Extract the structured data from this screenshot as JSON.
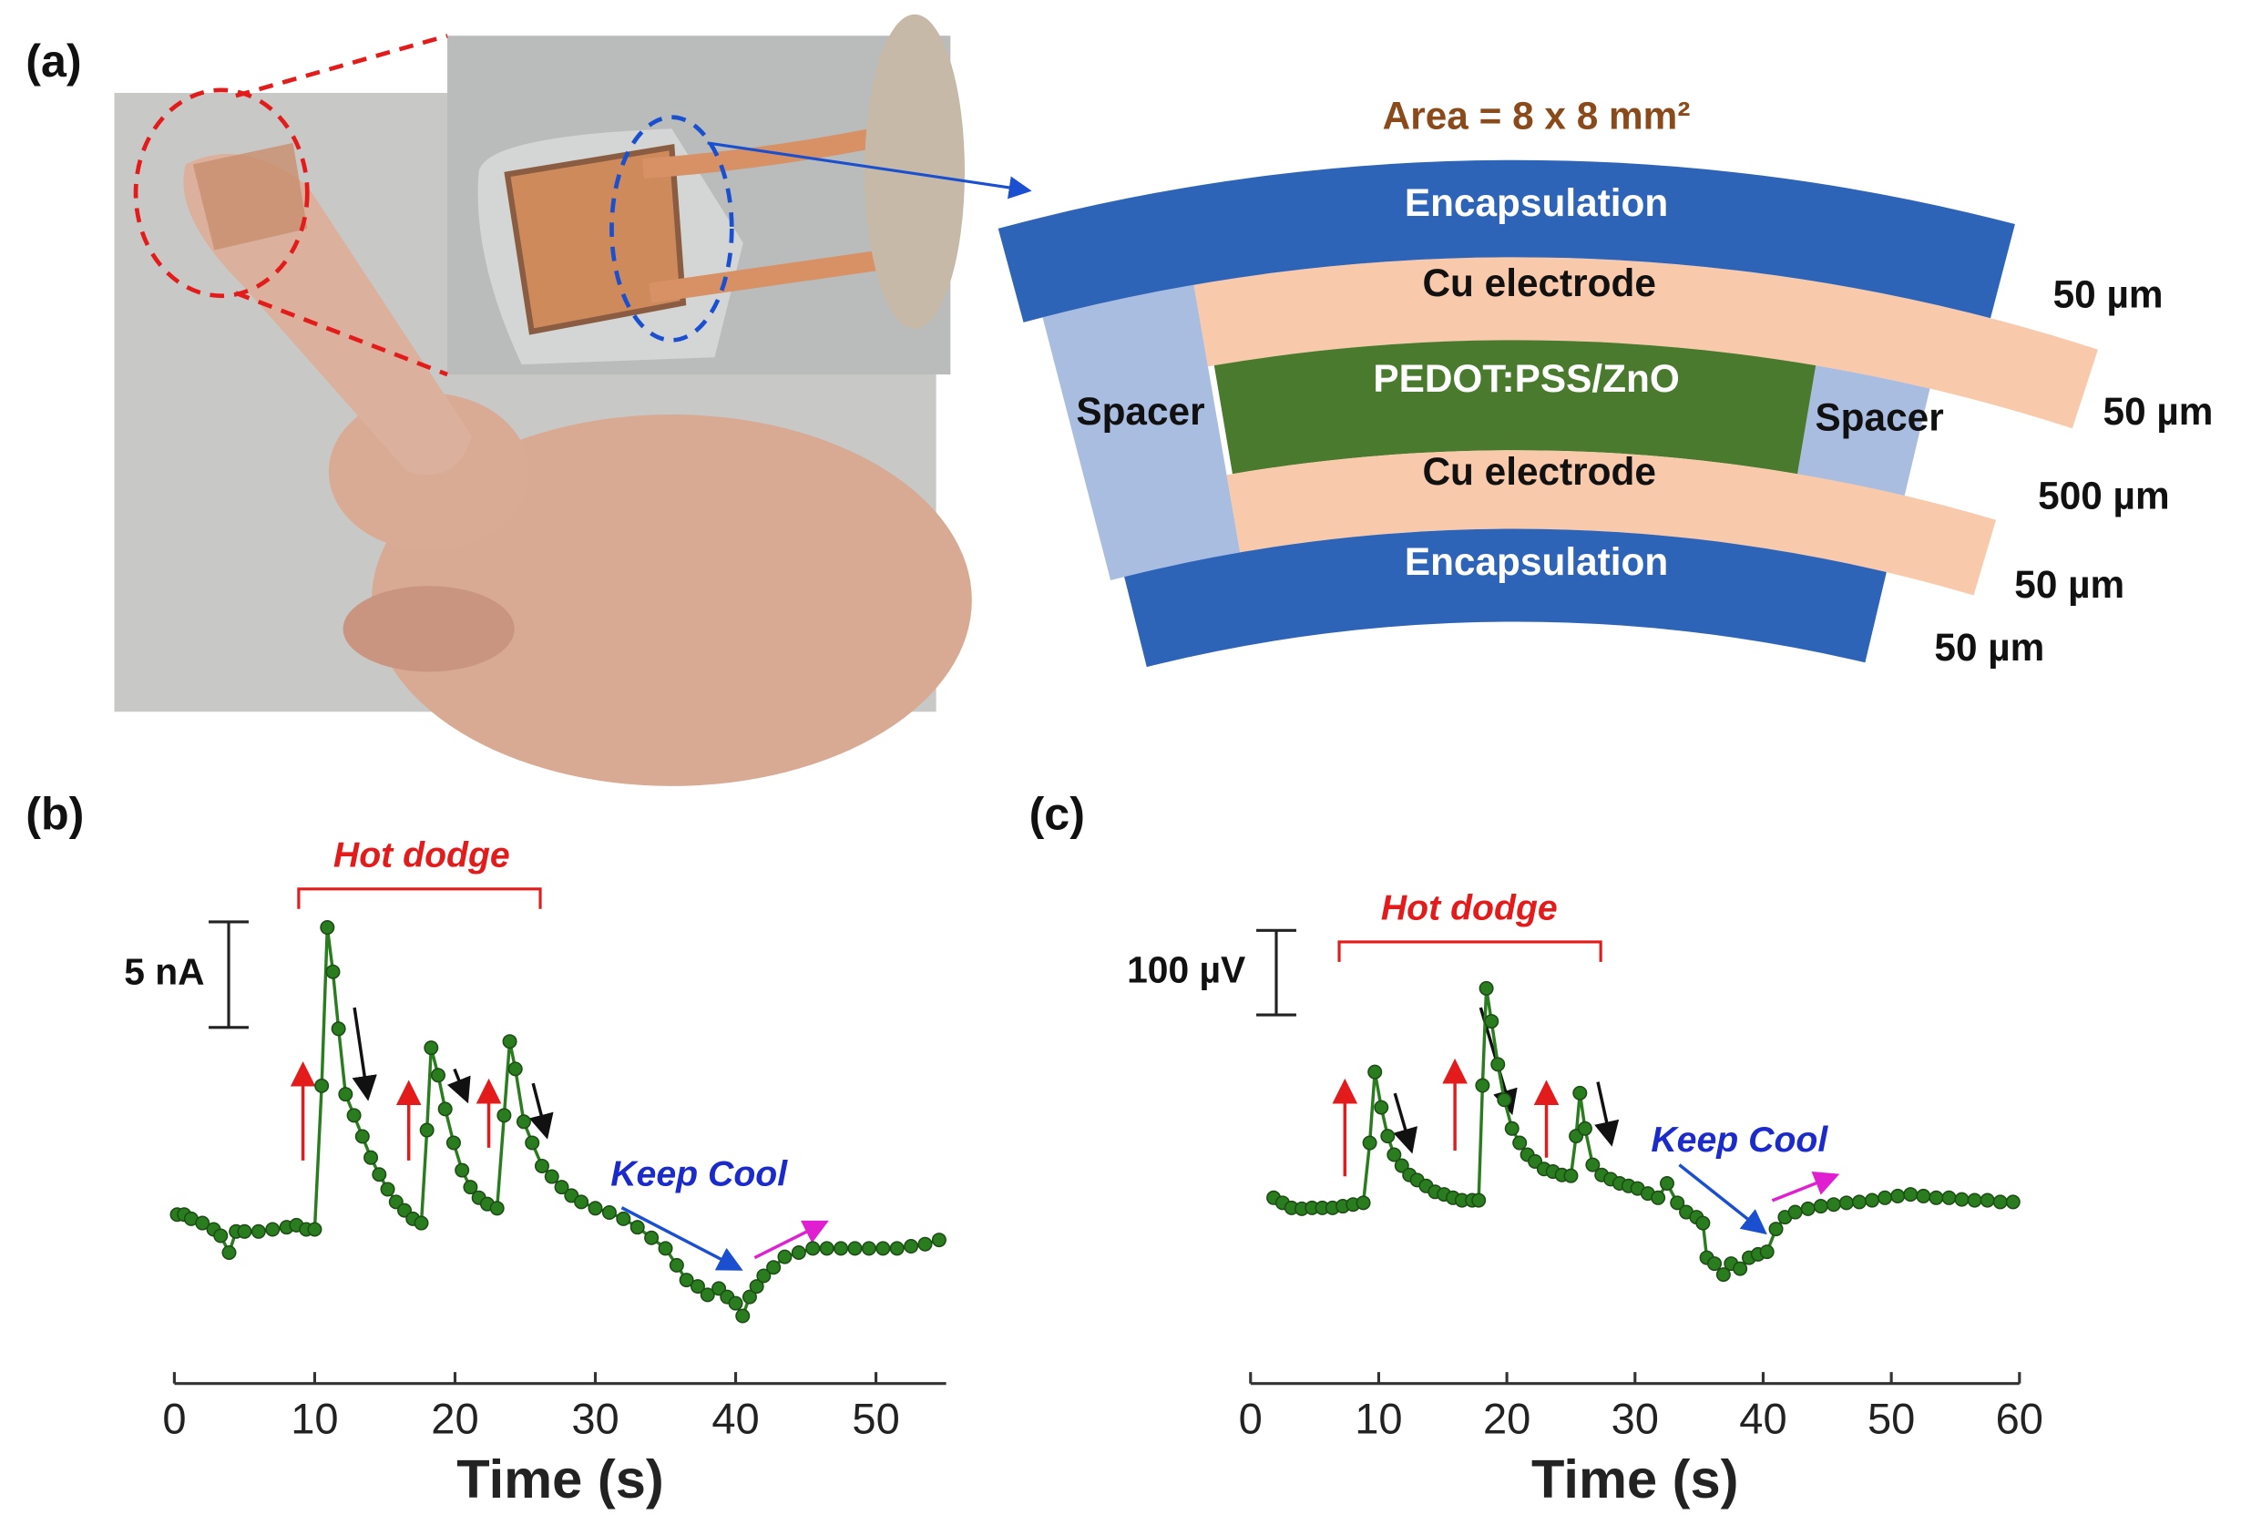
{
  "diagram": {
    "panel_label": "(a)",
    "area": "Area = 8 x 8 mm²",
    "layers": [
      "Encapsulation",
      "Cu electrode",
      "PEDOT:PSS/ZnO",
      "Cu electrode",
      "Encapsulation"
    ],
    "spacers": [
      "Spacer",
      "Spacer"
    ],
    "thicknesses": [
      "50 µm",
      "50 µm",
      "500 µm",
      "50 µm",
      "50 µm"
    ]
  },
  "chart_data": [
    {
      "type": "line",
      "panel_label": "(b)",
      "xlabel": "Time (s)",
      "xlim": [
        0,
        55
      ],
      "xticks": [
        0,
        10,
        20,
        30,
        40,
        50
      ],
      "ylim": [
        0,
        22
      ],
      "scale_bar": {
        "value": 5,
        "label": "5 nA"
      },
      "annotations": [
        "Hot dodge",
        "Keep Cool"
      ],
      "x": [
        0.2,
        0.7,
        1.2,
        2,
        2.8,
        3.3,
        3.9,
        4.4,
        5,
        6,
        7,
        8,
        8.7,
        9.4,
        10,
        10.5,
        10.9,
        11.3,
        11.7,
        12.2,
        12.8,
        13.4,
        14,
        14.6,
        15.2,
        15.8,
        16.4,
        17,
        17.6,
        18,
        18.3,
        18.8,
        19.3,
        19.9,
        20.5,
        21.1,
        21.7,
        22.3,
        23,
        23.5,
        23.9,
        24.3,
        24.9,
        25.5,
        26.2,
        26.9,
        27.6,
        28.3,
        29,
        30,
        31,
        32,
        33,
        34,
        35,
        35.8,
        36.5,
        37.3,
        38,
        38.8,
        39.4,
        40,
        40.5,
        41,
        41.5,
        42,
        42.7,
        43.5,
        44.5,
        45.5,
        46.5,
        47.5,
        48.5,
        49.5,
        50.5,
        51.5,
        52.5,
        53.5,
        54.5
      ],
      "series": [
        {
          "color": "#2a7d1f",
          "values": [
            8.0,
            8.0,
            7.8,
            7.6,
            7.3,
            7.0,
            6.2,
            7.2,
            7.2,
            7.2,
            7.3,
            7.4,
            7.5,
            7.3,
            7.3,
            14.1,
            21.6,
            19.5,
            16.8,
            13.7,
            12.7,
            11.7,
            10.7,
            9.9,
            9.2,
            8.6,
            8.2,
            7.8,
            7.6,
            12.0,
            15.9,
            14.6,
            13.0,
            11.4,
            10.1,
            9.3,
            8.8,
            8.5,
            8.3,
            12.7,
            16.2,
            14.9,
            12.4,
            11.4,
            10.3,
            9.8,
            9.3,
            8.9,
            8.6,
            8.3,
            8.1,
            7.8,
            7.4,
            6.9,
            6.4,
            5.6,
            4.9,
            4.6,
            4.2,
            4.5,
            4.1,
            3.8,
            3.2,
            4.1,
            4.6,
            5.1,
            5.5,
            6.0,
            6.2,
            6.4,
            6.4,
            6.4,
            6.4,
            6.4,
            6.4,
            6.4,
            6.5,
            6.6,
            6.8
          ]
        }
      ]
    },
    {
      "type": "line",
      "panel_label": "(c)",
      "xlabel": "Time (s)",
      "xlim": [
        0,
        60
      ],
      "xticks": [
        0,
        10,
        20,
        30,
        40,
        50,
        60
      ],
      "ylim": [
        0,
        540
      ],
      "scale_bar": {
        "value": 100,
        "label": "100 µV"
      },
      "annotations": [
        "Hot dodge",
        "Keep Cool"
      ],
      "x": [
        1.8,
        2.5,
        3.2,
        4,
        4.8,
        5.6,
        6.4,
        7.2,
        8,
        8.8,
        9.3,
        9.7,
        10.2,
        10.7,
        11.2,
        11.8,
        12.4,
        13,
        13.7,
        14.4,
        15.1,
        15.8,
        16.5,
        17.3,
        17.8,
        18.1,
        18.4,
        18.8,
        19.3,
        19.8,
        20.4,
        21,
        21.6,
        22.2,
        22.9,
        23.6,
        24.3,
        25,
        25.4,
        25.7,
        26.1,
        26.7,
        27.4,
        28.1,
        28.8,
        29.5,
        30.2,
        31,
        31.8,
        32.5,
        33.3,
        34,
        34.8,
        35.3,
        35.6,
        36.2,
        36.9,
        37.5,
        38.2,
        38.9,
        39.6,
        40.3,
        41,
        41.7,
        42.5,
        43.5,
        44.5,
        45.5,
        46.5,
        47.5,
        48.5,
        49.5,
        50.5,
        51.5,
        52.5,
        53.5,
        54.5,
        55.5,
        56.5,
        57.5,
        58.5,
        59.5
      ],
      "series": [
        {
          "color": "#2a7d1f",
          "values": [
            220,
            214,
            208,
            207,
            208,
            208,
            208,
            210,
            212,
            214,
            285,
            369,
            327,
            293,
            271,
            258,
            247,
            241,
            234,
            227,
            224,
            220,
            217,
            217,
            217,
            353,
            468,
            429,
            378,
            336,
            302,
            285,
            271,
            263,
            254,
            251,
            247,
            246,
            293,
            344,
            302,
            259,
            247,
            242,
            237,
            234,
            231,
            225,
            220,
            237,
            214,
            203,
            197,
            190,
            149,
            142,
            129,
            142,
            136,
            149,
            153,
            156,
            183,
            197,
            203,
            207,
            210,
            212,
            214,
            215,
            217,
            220,
            222,
            224,
            222,
            220,
            220,
            218,
            217,
            217,
            215,
            215
          ]
        }
      ]
    }
  ]
}
